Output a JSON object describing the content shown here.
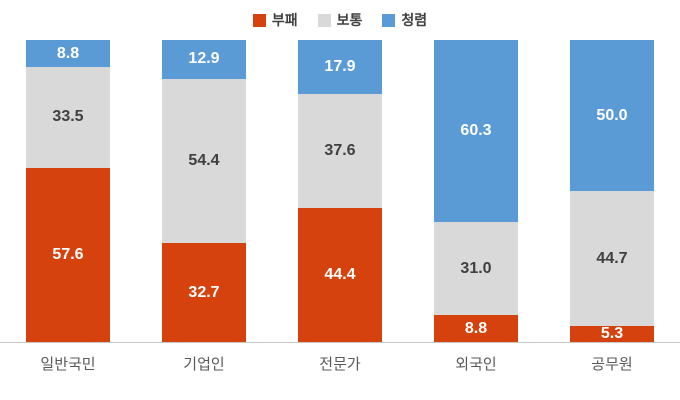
{
  "colors": {
    "corrupt": "#d5420d",
    "neutral": "#d9d9d9",
    "clean": "#5b9bd5",
    "label_on_color": "#ffffff",
    "label_on_gray": "#404040",
    "axis_line": "#c9c9c9",
    "category_label": "#595959"
  },
  "chart_data": {
    "type": "bar",
    "stacked": true,
    "percent_stacked": true,
    "title": "",
    "xlabel": "",
    "ylabel": "",
    "ylim": [
      0,
      100
    ],
    "grid": false,
    "legend_position": "top",
    "categories": [
      "일반국민",
      "기업인",
      "전문가",
      "외국인",
      "공무원"
    ],
    "series": [
      {
        "name": "부패",
        "color_key": "corrupt",
        "values": [
          57.6,
          32.7,
          44.4,
          8.8,
          5.3
        ]
      },
      {
        "name": "보통",
        "color_key": "neutral",
        "values": [
          33.5,
          54.4,
          37.6,
          31.0,
          44.7
        ]
      },
      {
        "name": "청렴",
        "color_key": "clean",
        "values": [
          8.8,
          12.9,
          17.9,
          60.3,
          50.0
        ]
      }
    ]
  }
}
